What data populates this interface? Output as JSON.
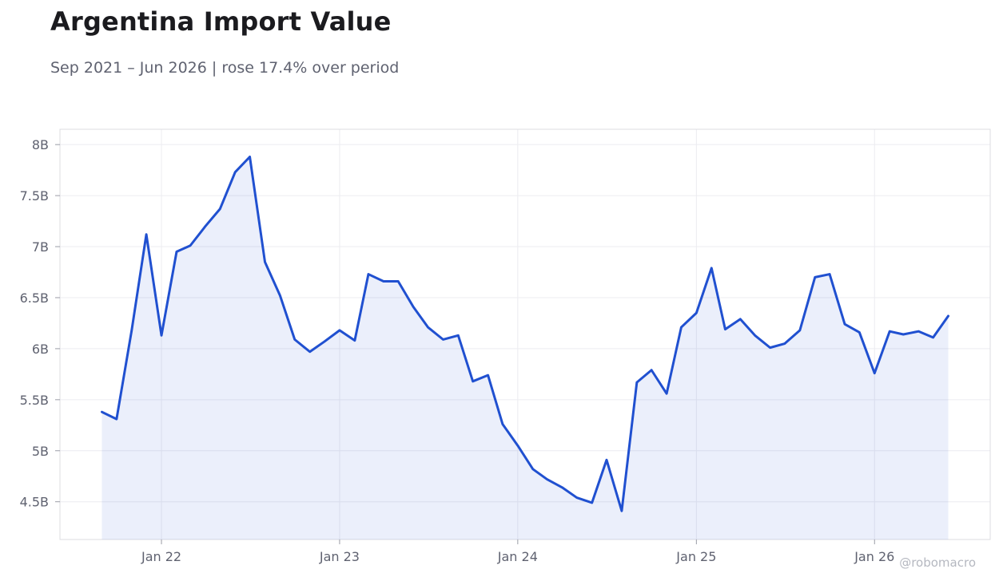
{
  "header": {
    "title": "Argentina Import Value",
    "subtitle": "Sep 2021 – Jun 2026 | rose 17.4% over period"
  },
  "watermark": "@robomacro",
  "colors": {
    "line": "#2050d0",
    "fill": "#2050d0",
    "grid": "#ececf0",
    "frame": "#dcdce2"
  },
  "chart_data": {
    "type": "area",
    "title": "Argentina Import Value",
    "subtitle": "Sep 2021 – Jun 2026 | rose 17.4% over period",
    "xlabel": "",
    "ylabel": "",
    "ylim": [
      4.13,
      8.15
    ],
    "xlim": [
      "2021-06-07",
      "2026-08-26"
    ],
    "grid": true,
    "y_ticks": [
      {
        "value": 4.5,
        "label": "4.5B"
      },
      {
        "value": 5,
        "label": "5B"
      },
      {
        "value": 5.5,
        "label": "5.5B"
      },
      {
        "value": 6,
        "label": "6B"
      },
      {
        "value": 6.5,
        "label": "6.5B"
      },
      {
        "value": 7,
        "label": "7B"
      },
      {
        "value": 7.5,
        "label": "7.5B"
      },
      {
        "value": 8,
        "label": "8B"
      }
    ],
    "x_ticks": [
      {
        "value": "2022-01-01",
        "label": "Jan 22"
      },
      {
        "value": "2023-01-01",
        "label": "Jan 23"
      },
      {
        "value": "2024-01-01",
        "label": "Jan 24"
      },
      {
        "value": "2025-01-01",
        "label": "Jan 25"
      },
      {
        "value": "2026-01-01",
        "label": "Jan 26"
      }
    ],
    "series": [
      {
        "x": [
          "2021-09",
          "2021-10",
          "2021-11",
          "2021-12",
          "2022-01",
          "2022-02",
          "2022-03",
          "2022-04",
          "2022-05",
          "2022-06",
          "2022-07",
          "2022-08",
          "2022-09",
          "2022-10",
          "2022-11",
          "2022-12",
          "2023-01",
          "2023-02",
          "2023-03",
          "2023-04",
          "2023-05",
          "2023-06",
          "2023-07",
          "2023-08",
          "2023-09",
          "2023-10",
          "2023-11",
          "2023-12",
          "2024-01",
          "2024-02",
          "2024-03",
          "2024-04",
          "2024-05",
          "2024-06",
          "2024-07",
          "2024-08",
          "2024-09",
          "2024-10",
          "2024-11",
          "2024-12",
          "2025-01",
          "2025-02",
          "2025-03",
          "2025-04",
          "2025-05",
          "2025-06",
          "2025-07",
          "2025-08",
          "2025-09",
          "2025-10",
          "2025-11",
          "2025-12",
          "2026-01",
          "2026-02",
          "2026-03",
          "2026-04",
          "2026-05",
          "2026-06"
        ],
        "values": [
          5.38,
          5.31,
          6.18,
          7.12,
          6.13,
          6.95,
          7.01,
          7.2,
          7.37,
          7.73,
          7.88,
          6.85,
          6.52,
          6.09,
          5.97,
          6.07,
          6.18,
          6.08,
          6.73,
          6.66,
          6.66,
          6.41,
          6.21,
          6.09,
          6.13,
          5.68,
          5.74,
          5.26,
          5.05,
          4.82,
          4.72,
          4.64,
          4.54,
          4.49,
          4.91,
          4.41,
          5.67,
          5.79,
          5.56,
          6.21,
          6.35,
          6.79,
          6.19,
          6.29,
          6.13,
          6.01,
          6.05,
          6.18,
          6.7,
          6.73,
          6.24,
          6.16,
          5.76,
          6.17,
          6.14,
          6.17,
          6.11,
          6.32
        ]
      }
    ]
  }
}
